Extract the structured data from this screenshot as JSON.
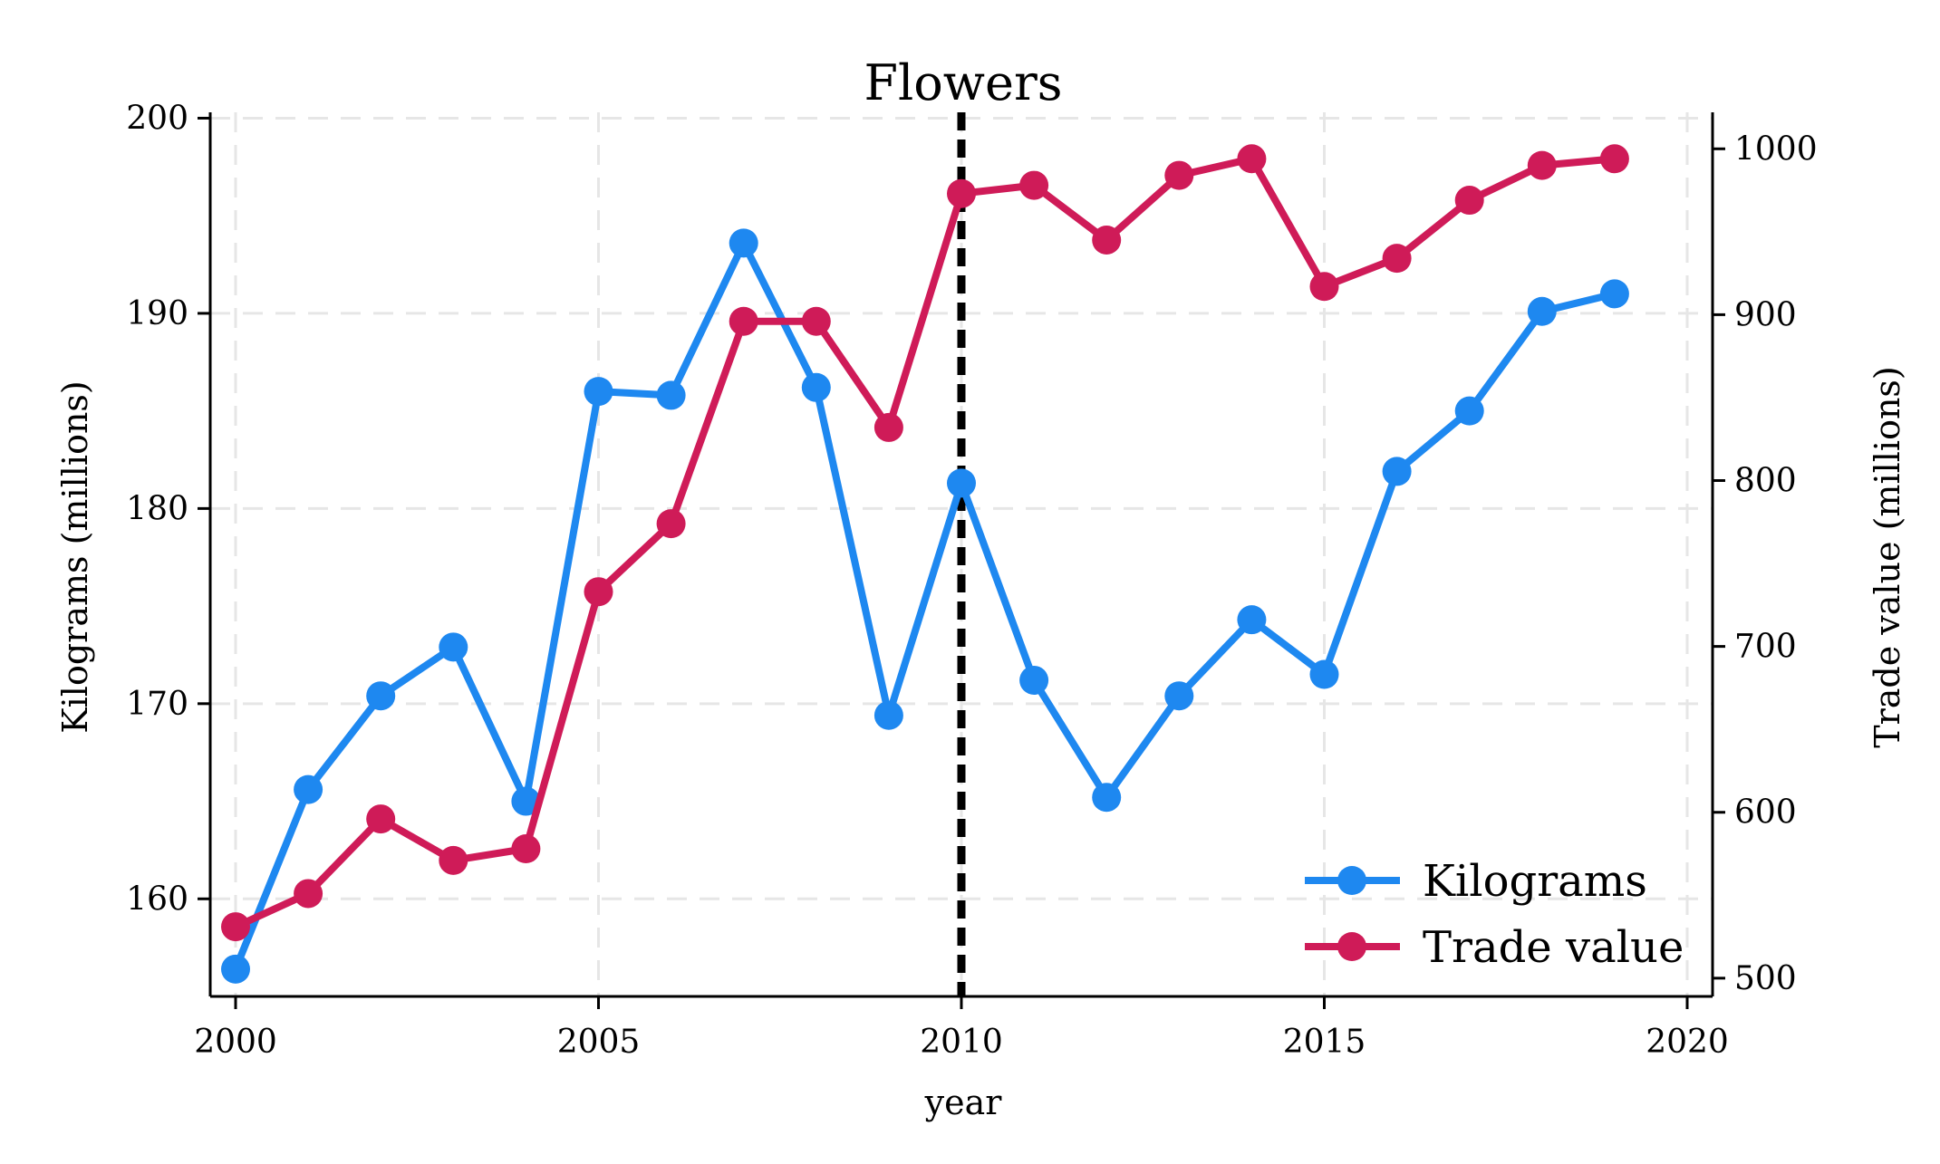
{
  "chart_data": {
    "type": "line",
    "title": "Flowers",
    "xlabel": "year",
    "ylabel_left": "Kilograms (millions)",
    "ylabel_right": "Trade value (millions)",
    "x": [
      2000,
      2001,
      2002,
      2003,
      2004,
      2005,
      2006,
      2007,
      2008,
      2009,
      2010,
      2011,
      2012,
      2013,
      2014,
      2015,
      2016,
      2017,
      2018,
      2019
    ],
    "xlim": [
      2000,
      2020
    ],
    "xticks": [
      2000,
      2005,
      2010,
      2015,
      2020
    ],
    "xtick_labels": [
      "2000",
      "2005",
      "2010",
      "2015",
      "2020"
    ],
    "ylim_left": [
      155,
      200.3
    ],
    "yticks_left": [
      160,
      170,
      180,
      190,
      200
    ],
    "ytick_labels_left": [
      "160",
      "170",
      "180",
      "190",
      "200"
    ],
    "ylim_right": [
      489,
      1022
    ],
    "yticks_right": [
      500,
      600,
      700,
      800,
      900,
      1000
    ],
    "ytick_labels_right": [
      "500",
      "600",
      "700",
      "800",
      "900",
      "1000"
    ],
    "grid": true,
    "vline": {
      "x": 2010,
      "style": "dashed",
      "color": "#000000"
    },
    "legend_position": "bottom-right",
    "series": [
      {
        "name": "Kilograms",
        "axis": "left",
        "color": "#1e88f0",
        "values": [
          156.4,
          165.6,
          170.4,
          172.9,
          165.0,
          186.0,
          185.8,
          193.6,
          186.2,
          169.4,
          181.3,
          171.2,
          165.2,
          170.4,
          174.3,
          171.5,
          181.9,
          185.0,
          190.1,
          191.0
        ]
      },
      {
        "name": "Trade value",
        "axis": "right",
        "color": "#cf1b58",
        "values": [
          531,
          551,
          596,
          571,
          578,
          733,
          774,
          896,
          896,
          832,
          973,
          978,
          945,
          984,
          994,
          917,
          934,
          969,
          990,
          994
        ]
      }
    ]
  }
}
